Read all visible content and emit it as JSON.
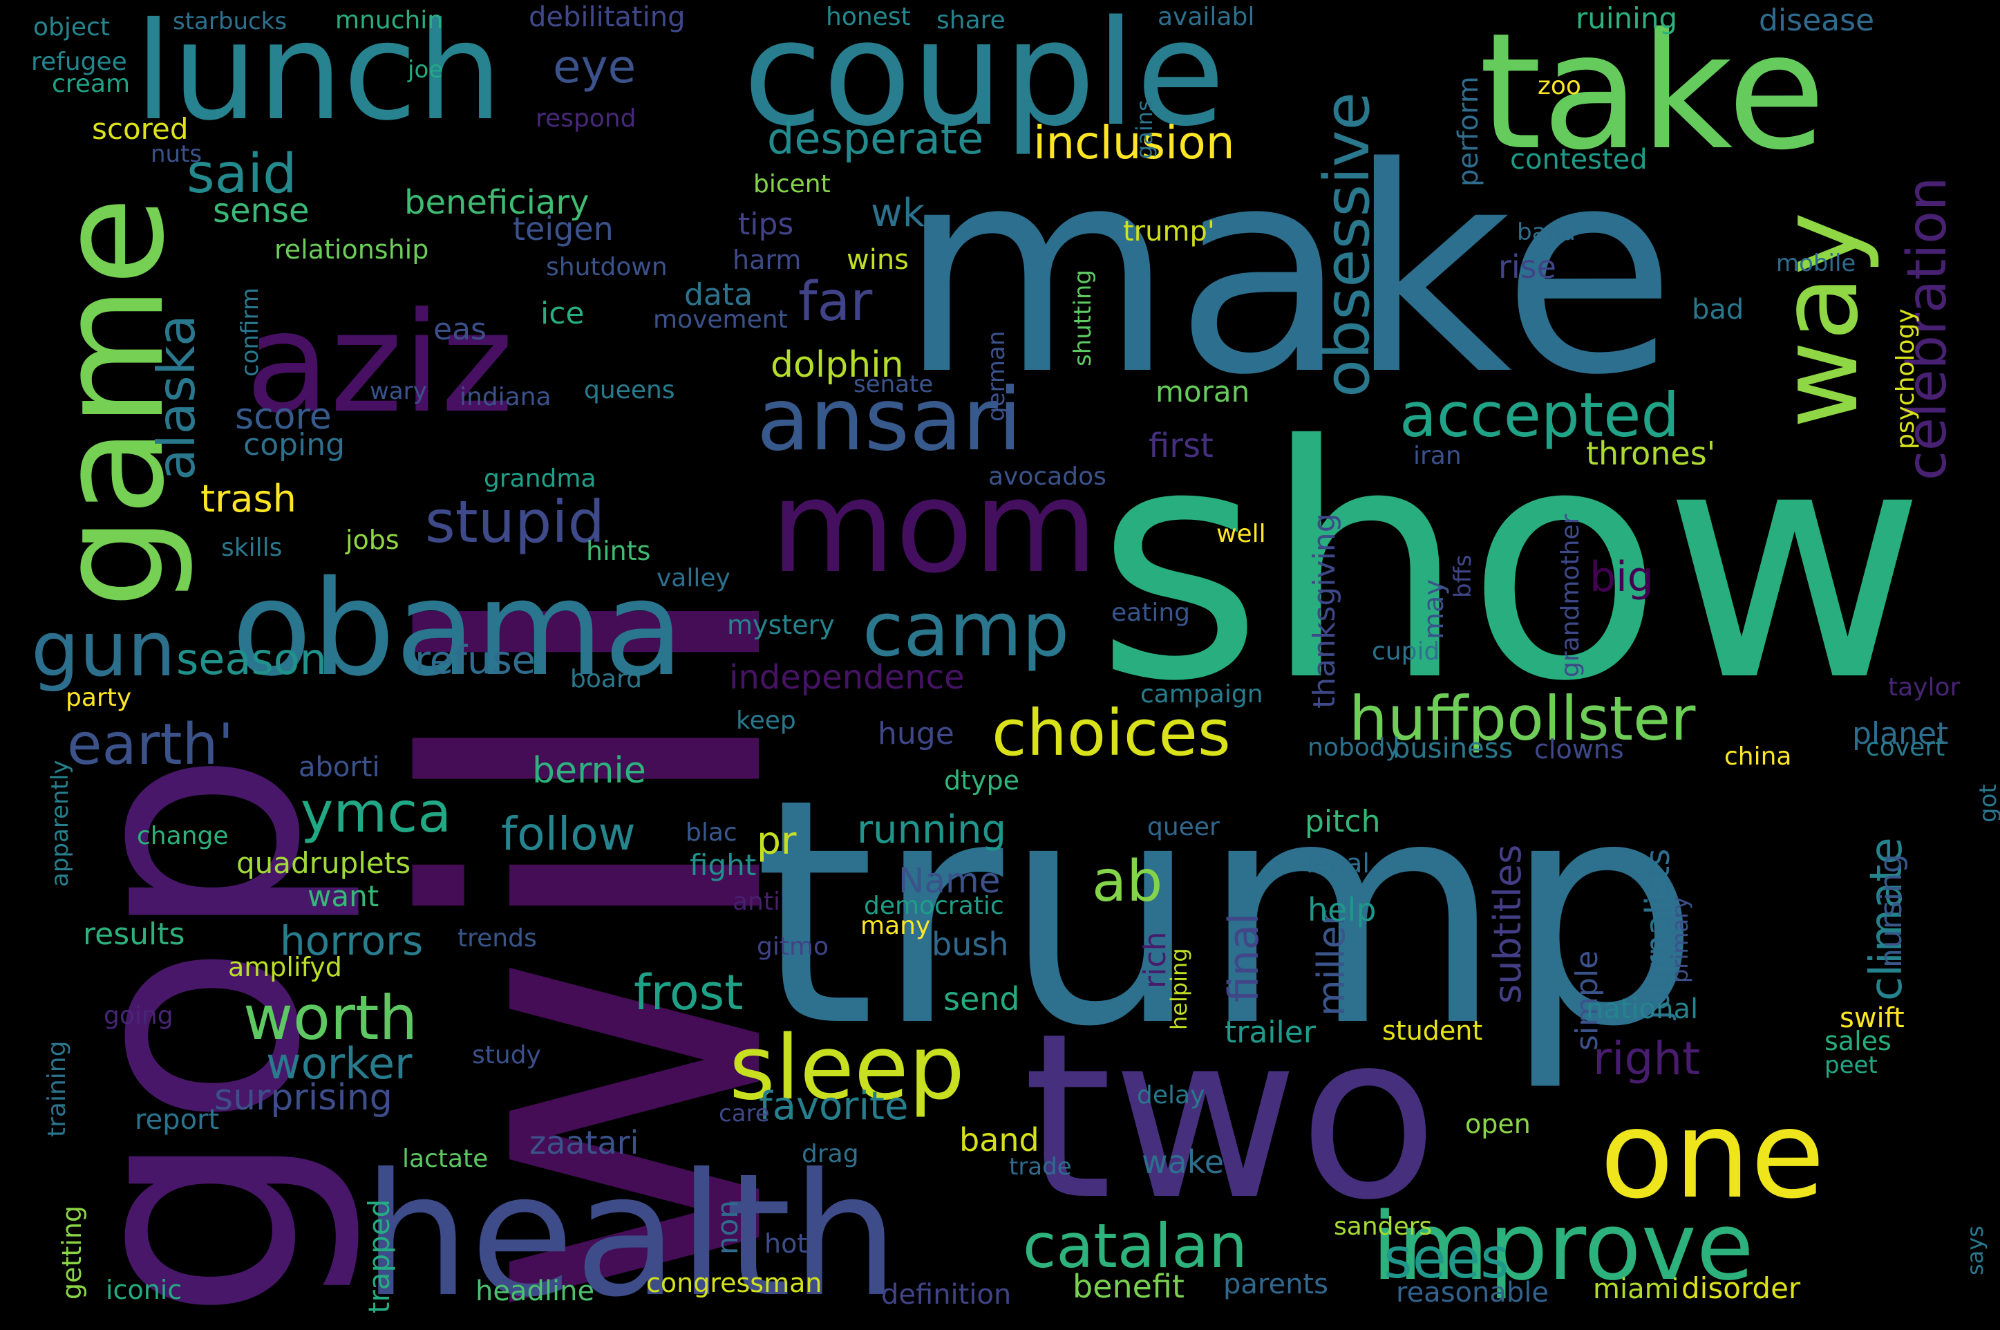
{
  "wordcloud": {
    "words": [
      {
        "text": "will",
        "color": "#440d56",
        "vertical": true
      },
      {
        "text": "make",
        "color": "#2d6f8e",
        "vertical": false
      },
      {
        "text": "show",
        "color": "#29af7f",
        "vertical": false
      },
      {
        "text": "trump",
        "color": "#2d718e",
        "vertical": false
      },
      {
        "text": "gop",
        "color": "#48176a",
        "vertical": true
      },
      {
        "text": "two",
        "color": "#46307e",
        "vertical": false
      },
      {
        "text": "health",
        "color": "#3e4c8a",
        "vertical": false
      },
      {
        "text": "take",
        "color": "#66cb5d",
        "vertical": false
      },
      {
        "text": "couple",
        "color": "#287d8e",
        "vertical": false
      },
      {
        "text": "lunch",
        "color": "#26838f",
        "vertical": false
      },
      {
        "text": "aziz",
        "color": "#471063",
        "vertical": false
      },
      {
        "text": "game",
        "color": "#75d054",
        "vertical": true
      },
      {
        "text": "obama",
        "color": "#2a768e",
        "vertical": false
      },
      {
        "text": "mom",
        "color": "#440f5f",
        "vertical": false
      },
      {
        "text": "one",
        "color": "#efe51c",
        "vertical": false
      },
      {
        "text": "way",
        "color": "#8fd744",
        "vertical": true
      },
      {
        "text": "improve",
        "color": "#2db27d",
        "vertical": false
      },
      {
        "text": "sleep",
        "color": "#c8e020",
        "vertical": false
      },
      {
        "text": "ansari",
        "color": "#38598c",
        "vertical": false
      },
      {
        "text": "camp",
        "color": "#2a778e",
        "vertical": false
      },
      {
        "text": "gun",
        "color": "#2d708e",
        "vertical": false
      },
      {
        "text": "huffpollster",
        "color": "#6ece58",
        "vertical": false
      },
      {
        "text": "catalan",
        "color": "#2eb37c",
        "vertical": false
      },
      {
        "text": "choices",
        "color": "#dae319",
        "vertical": false
      },
      {
        "text": "obsessive",
        "color": "#2a788e",
        "vertical": true
      },
      {
        "text": "celebration",
        "color": "#482173",
        "vertical": true
      },
      {
        "text": "earth'",
        "color": "#3b528b",
        "vertical": false
      },
      {
        "text": "accepted",
        "color": "#20a386",
        "vertical": false
      },
      {
        "text": "stupid",
        "color": "#3e4a89",
        "vertical": false
      },
      {
        "text": "worth",
        "color": "#5ec962",
        "vertical": false
      },
      {
        "text": "ymca",
        "color": "#22a884",
        "vertical": false
      },
      {
        "text": "alaska",
        "color": "#2a788e",
        "vertical": true
      },
      {
        "text": "ab",
        "color": "#84d44b",
        "vertical": false
      },
      {
        "text": "sees",
        "color": "#1f988b",
        "vertical": false
      },
      {
        "text": "frost",
        "color": "#1fa188",
        "vertical": false
      },
      {
        "text": "eye",
        "color": "#3b528b",
        "vertical": false
      },
      {
        "text": "said",
        "color": "#238a8d",
        "vertical": false
      },
      {
        "text": "inclusion",
        "color": "#fde725",
        "vertical": false
      },
      {
        "text": "desperate",
        "color": "#238a8d",
        "vertical": false
      },
      {
        "text": "far",
        "color": "#404387",
        "vertical": false
      },
      {
        "text": "worker",
        "color": "#287c8e",
        "vertical": false
      },
      {
        "text": "right",
        "color": "#481c6e",
        "vertical": false
      },
      {
        "text": "climate",
        "color": "#25838e",
        "vertical": true
      },
      {
        "text": "follow",
        "color": "#25858e",
        "vertical": false
      },
      {
        "text": "dolphin",
        "color": "#b5de2b",
        "vertical": false
      },
      {
        "text": "wk",
        "color": "#2c728e",
        "vertical": false
      },
      {
        "text": "horrors",
        "color": "#287d8e",
        "vertical": false
      },
      {
        "text": "season",
        "color": "#21918c",
        "vertical": false
      },
      {
        "text": "big",
        "color": "#440154",
        "vertical": false
      },
      {
        "text": "refuse",
        "color": "#2f6c8e",
        "vertical": false
      },
      {
        "text": "running",
        "color": "#1f958b",
        "vertical": false
      },
      {
        "text": "final",
        "color": "#404688",
        "vertical": true
      },
      {
        "text": "surprising",
        "color": "#3d4e8a",
        "vertical": false
      },
      {
        "text": "independence",
        "color": "#471365",
        "vertical": false
      },
      {
        "text": "favorite",
        "color": "#277f8e",
        "vertical": false
      },
      {
        "text": "subtitles",
        "color": "#433e85",
        "vertical": true
      },
      {
        "text": "miller",
        "color": "#3a548c",
        "vertical": true
      },
      {
        "text": "thanksgiving",
        "color": "#3e4989",
        "vertical": true
      },
      {
        "text": "journalists",
        "color": "#2e6e8e",
        "vertical": true
      },
      {
        "text": "bernie",
        "color": "#2db27d",
        "vertical": false
      },
      {
        "text": "beneficiary",
        "color": "#3fbc73",
        "vertical": false
      },
      {
        "text": "pr",
        "color": "#c5e021",
        "vertical": false
      },
      {
        "text": "Name",
        "color": "#3b528b",
        "vertical": false
      },
      {
        "text": "huge",
        "color": "#3f4788",
        "vertical": false
      },
      {
        "text": "benefit",
        "color": "#7ad151",
        "vertical": false
      },
      {
        "text": "trash",
        "color": "#fde725",
        "vertical": false
      },
      {
        "text": "score",
        "color": "#375b8d",
        "vertical": false
      },
      {
        "text": "nursing",
        "color": "#38588c",
        "vertical": true
      },
      {
        "text": "wake",
        "color": "#2e6f8e",
        "vertical": false
      },
      {
        "text": "bush",
        "color": "#31688e",
        "vertical": false
      },
      {
        "text": "help",
        "color": "#1f978b",
        "vertical": false
      },
      {
        "text": "planet",
        "color": "#2e6d8e",
        "vertical": false
      },
      {
        "text": "band",
        "color": "#d8e219",
        "vertical": false
      },
      {
        "text": "sense",
        "color": "#3aba76",
        "vertical": false
      },
      {
        "text": "data",
        "color": "#2c738e",
        "vertical": false
      },
      {
        "text": "results",
        "color": "#2db27d",
        "vertical": false
      },
      {
        "text": "quadruplets",
        "color": "#a2da37",
        "vertical": false
      },
      {
        "text": "want",
        "color": "#37b878",
        "vertical": false
      },
      {
        "text": "teigen",
        "color": "#3b528b",
        "vertical": false
      },
      {
        "text": "rise",
        "color": "#404588",
        "vertical": false
      },
      {
        "text": "tips",
        "color": "#414287",
        "vertical": false
      },
      {
        "text": "first",
        "color": "#46307e",
        "vertical": false
      },
      {
        "text": "thrones'",
        "color": "#addc30",
        "vertical": false
      },
      {
        "text": "zaatari",
        "color": "#3b528b",
        "vertical": false
      },
      {
        "text": "coping",
        "color": "#2d718e",
        "vertical": false
      },
      {
        "text": "send",
        "color": "#25ab82",
        "vertical": false
      },
      {
        "text": "simple",
        "color": "#3b528b",
        "vertical": true
      },
      {
        "text": "trailer",
        "color": "#1e9b8a",
        "vertical": false
      },
      {
        "text": "pitch",
        "color": "#35b779",
        "vertical": false
      },
      {
        "text": "perform",
        "color": "#2f6c8e",
        "vertical": true
      },
      {
        "text": "eas",
        "color": "#3c4f8a",
        "vertical": false
      },
      {
        "text": "scored",
        "color": "#dde318",
        "vertical": false
      },
      {
        "text": "jobs",
        "color": "#90d743",
        "vertical": false
      },
      {
        "text": "wins",
        "color": "#c2df23",
        "vertical": false
      },
      {
        "text": "aborti",
        "color": "#3b528b",
        "vertical": false
      },
      {
        "text": "business",
        "color": "#2a788e",
        "vertical": false
      },
      {
        "text": "ice",
        "color": "#28ae80",
        "vertical": false
      },
      {
        "text": "ruining",
        "color": "#2cb17e",
        "vertical": false
      },
      {
        "text": "disease",
        "color": "#2f6b8e",
        "vertical": false
      },
      {
        "text": "contested",
        "color": "#1e9c89",
        "vertical": false
      },
      {
        "text": "sales",
        "color": "#27ad81",
        "vertical": false
      },
      {
        "text": "covert",
        "color": "#287c8e",
        "vertical": false
      },
      {
        "text": "swift",
        "color": "#fde725",
        "vertical": false
      },
      {
        "text": "rich",
        "color": "#481a6c",
        "vertical": true
      },
      {
        "text": "amplifyd",
        "color": "#bddf26",
        "vertical": false
      },
      {
        "text": "national",
        "color": "#25838e",
        "vertical": false
      },
      {
        "text": "relationship",
        "color": "#6ccd5a",
        "vertical": false
      },
      {
        "text": "bad",
        "color": "#2a778e",
        "vertical": false
      },
      {
        "text": "iran",
        "color": "#3b518b",
        "vertical": false
      },
      {
        "text": "may",
        "color": "#3a538b",
        "vertical": true
      },
      {
        "text": "well",
        "color": "#fde725",
        "vertical": false
      },
      {
        "text": "hints",
        "color": "#3fbc73",
        "vertical": false
      },
      {
        "text": "party",
        "color": "#fde725",
        "vertical": false
      },
      {
        "text": "moran",
        "color": "#67cc5c",
        "vertical": false
      },
      {
        "text": "trump'",
        "color": "#d0e11c",
        "vertical": false
      },
      {
        "text": "many",
        "color": "#fde725",
        "vertical": false
      },
      {
        "text": "nobody",
        "color": "#2c718e",
        "vertical": false
      },
      {
        "text": "student",
        "color": "#e5e419",
        "vertical": false
      },
      {
        "text": "headline",
        "color": "#4ac16d",
        "vertical": false
      },
      {
        "text": "legal",
        "color": "#2e6e8e",
        "vertical": false
      },
      {
        "text": "mystery",
        "color": "#25848e",
        "vertical": false
      },
      {
        "text": "parents",
        "color": "#31688e",
        "vertical": false
      },
      {
        "text": "open",
        "color": "#8bd646",
        "vertical": false
      },
      {
        "text": "report",
        "color": "#2c738e",
        "vertical": false
      },
      {
        "text": "iconic",
        "color": "#25ac82",
        "vertical": false
      },
      {
        "text": "harm",
        "color": "#3e4a89",
        "vertical": false
      },
      {
        "text": "study",
        "color": "#3b518b",
        "vertical": false
      },
      {
        "text": "grandmother",
        "color": "#3e4989",
        "vertical": true
      },
      {
        "text": "democratic",
        "color": "#1f9e89",
        "vertical": false
      },
      {
        "text": "dtype",
        "color": "#31b57b",
        "vertical": false
      },
      {
        "text": "fight",
        "color": "#218f8d",
        "vertical": false
      },
      {
        "text": "definition",
        "color": "#414487",
        "vertical": false
      },
      {
        "text": "reasonable",
        "color": "#33628d",
        "vertical": false
      },
      {
        "text": "congressman",
        "color": "#d2e21b",
        "vertical": false
      },
      {
        "text": "lactate",
        "color": "#5cc863",
        "vertical": false
      },
      {
        "text": "drag",
        "color": "#2d718e",
        "vertical": false
      },
      {
        "text": "disorder",
        "color": "#dde318",
        "vertical": false
      },
      {
        "text": "miami",
        "color": "#b2dd2d",
        "vertical": false
      },
      {
        "text": "sanders",
        "color": "#a5db36",
        "vertical": false
      },
      {
        "text": "hot",
        "color": "#3d4d8a",
        "vertical": false
      },
      {
        "text": "non",
        "color": "#2f6b8e",
        "vertical": true
      },
      {
        "text": "trapped",
        "color": "#25ac82",
        "vertical": true
      },
      {
        "text": "getting",
        "color": "#8bd646",
        "vertical": true
      },
      {
        "text": "training",
        "color": "#2b748e",
        "vertical": true
      },
      {
        "text": "apparently",
        "color": "#27808e",
        "vertical": true
      },
      {
        "text": "change",
        "color": "#2db27d",
        "vertical": false
      },
      {
        "text": "going",
        "color": "#482576",
        "vertical": false
      },
      {
        "text": "trends",
        "color": "#39568c",
        "vertical": false
      },
      {
        "text": "anti",
        "color": "#481f70",
        "vertical": false
      },
      {
        "text": "gitmo",
        "color": "#404387",
        "vertical": false
      },
      {
        "text": "blac",
        "color": "#38598c",
        "vertical": false
      },
      {
        "text": "queer",
        "color": "#31678e",
        "vertical": false
      },
      {
        "text": "helping",
        "color": "#c0df25",
        "vertical": true
      },
      {
        "text": "delay",
        "color": "#2a778e",
        "vertical": false
      },
      {
        "text": "trade",
        "color": "#2f6b8e",
        "vertical": false
      },
      {
        "text": "care",
        "color": "#3e4989",
        "vertical": false
      },
      {
        "text": "keep",
        "color": "#2a788e",
        "vertical": false
      },
      {
        "text": "campaign",
        "color": "#277e8e",
        "vertical": false
      },
      {
        "text": "eating",
        "color": "#39568c",
        "vertical": false
      },
      {
        "text": "cupid",
        "color": "#2c738e",
        "vertical": false
      },
      {
        "text": "bffs",
        "color": "#404588",
        "vertical": true
      },
      {
        "text": "clowns",
        "color": "#3f4889",
        "vertical": false
      },
      {
        "text": "china",
        "color": "#fde725",
        "vertical": false
      },
      {
        "text": "got",
        "color": "#2a768e",
        "vertical": true
      },
      {
        "text": "taylor",
        "color": "#482475",
        "vertical": false
      },
      {
        "text": "primary",
        "color": "#3b518b",
        "vertical": true
      },
      {
        "text": "says",
        "color": "#2a788e",
        "vertical": true
      },
      {
        "text": "peet",
        "color": "#22a785",
        "vertical": false
      },
      {
        "text": "psychology",
        "color": "#d8e219",
        "vertical": true
      },
      {
        "text": "mobile",
        "color": "#2f6b8e",
        "vertical": false
      },
      {
        "text": "bana",
        "color": "#2f6c8e",
        "vertical": false
      },
      {
        "text": "zoo",
        "color": "#fde725",
        "vertical": false
      },
      {
        "text": "availabl",
        "color": "#2d708e",
        "vertical": false
      },
      {
        "text": "honest",
        "color": "#23898e",
        "vertical": false
      },
      {
        "text": "share",
        "color": "#26828e",
        "vertical": false
      },
      {
        "text": "gains",
        "color": "#2b758e",
        "vertical": true
      },
      {
        "text": "debilitating",
        "color": "#3f4889",
        "vertical": false
      },
      {
        "text": "starbucks",
        "color": "#2c728e",
        "vertical": false
      },
      {
        "text": "mnuchin",
        "color": "#29af7f",
        "vertical": false
      },
      {
        "text": "object",
        "color": "#25858e",
        "vertical": false
      },
      {
        "text": "refugee",
        "color": "#24868e",
        "vertical": false
      },
      {
        "text": "cream",
        "color": "#20a386",
        "vertical": false
      },
      {
        "text": "joe",
        "color": "#24aa83",
        "vertical": false
      },
      {
        "text": "respond",
        "color": "#482878",
        "vertical": false
      },
      {
        "text": "nuts",
        "color": "#3b528b",
        "vertical": false
      },
      {
        "text": "bicent",
        "color": "#84d44b",
        "vertical": false
      },
      {
        "text": "shutdown",
        "color": "#3b528b",
        "vertical": false
      },
      {
        "text": "confirm",
        "color": "#2a788e",
        "vertical": true
      },
      {
        "text": "movement",
        "color": "#3b528b",
        "vertical": false
      },
      {
        "text": "shutting",
        "color": "#5ec962",
        "vertical": true
      },
      {
        "text": "german",
        "color": "#3b528b",
        "vertical": true
      },
      {
        "text": "senate",
        "color": "#3a548c",
        "vertical": false
      },
      {
        "text": "indiana",
        "color": "#3b528b",
        "vertical": false
      },
      {
        "text": "queens",
        "color": "#287c8e",
        "vertical": false
      },
      {
        "text": "wary",
        "color": "#3b528b",
        "vertical": false
      },
      {
        "text": "grandma",
        "color": "#1fa088",
        "vertical": false
      },
      {
        "text": "avocados",
        "color": "#3b528b",
        "vertical": false
      },
      {
        "text": "skills",
        "color": "#2a788e",
        "vertical": false
      },
      {
        "text": "valley",
        "color": "#2d708e",
        "vertical": false
      },
      {
        "text": "board",
        "color": "#2a788e",
        "vertical": false
      }
    ]
  }
}
